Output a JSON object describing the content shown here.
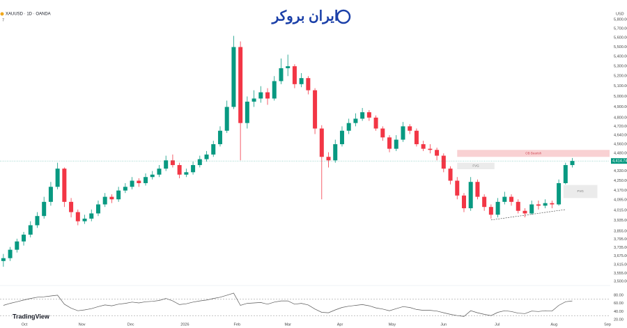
{
  "chart_data": {
    "type": "candlestick",
    "title": "XAUUSD · 1D · OANDA",
    "indicator": "7",
    "logo": "ایران بروکر",
    "brand": "TradingView",
    "currency": "USD",
    "log": true,
    "ylim": [
      3500,
      5800
    ],
    "xlim": [
      -0.5,
      89.5
    ],
    "yticks": [
      {
        "value": 5800,
        "label": "5,800.00"
      },
      {
        "value": 5700,
        "label": "5,700.00"
      },
      {
        "value": 5600,
        "label": "5,600.00"
      },
      {
        "value": 5500,
        "label": "5,500.00"
      },
      {
        "value": 5400,
        "label": "5,400.00"
      },
      {
        "value": 5300,
        "label": "5,300.00"
      },
      {
        "value": 5200,
        "label": "5,200.00"
      },
      {
        "value": 5100,
        "label": "5,100.00"
      },
      {
        "value": 5000,
        "label": "5,000.00"
      },
      {
        "value": 4900,
        "label": "4,900.00"
      },
      {
        "value": 4800,
        "label": "4,800.00"
      },
      {
        "value": 4720,
        "label": "4,720.00"
      },
      {
        "value": 4640,
        "label": "4,640.00"
      },
      {
        "value": 4560,
        "label": "4,560.00"
      },
      {
        "value": 4480,
        "label": "4,480.00"
      },
      {
        "value": 4330,
        "label": "4,330.00"
      },
      {
        "value": 4250,
        "label": "4,250.00"
      },
      {
        "value": 4170,
        "label": "4,170.00"
      },
      {
        "value": 4095,
        "label": "4,095.00"
      },
      {
        "value": 4015,
        "label": "4,015.00"
      },
      {
        "value": 3935,
        "label": "3,935.00"
      },
      {
        "value": 3855,
        "label": "3,855.00"
      },
      {
        "value": 3795,
        "label": "3,795.00"
      },
      {
        "value": 3735,
        "label": "3,735.00"
      },
      {
        "value": 3675,
        "label": "3,675.00"
      },
      {
        "value": 3615,
        "label": "3,615.00"
      },
      {
        "value": 3555,
        "label": "3,555.00"
      },
      {
        "value": 3500,
        "label": "3,500.00"
      }
    ],
    "xticks": [
      {
        "value": 3.1,
        "label": "Oct"
      },
      {
        "value": 11.6,
        "label": "Nov"
      },
      {
        "value": 18.8,
        "label": "Dec"
      },
      {
        "value": 26.8,
        "label": "2026"
      },
      {
        "value": 34.5,
        "label": "Feb"
      },
      {
        "value": 42,
        "label": "Mar"
      },
      {
        "value": 49.7,
        "label": "Apr"
      },
      {
        "value": 57.4,
        "label": "May"
      },
      {
        "value": 65,
        "label": "Jun"
      },
      {
        "value": 72.9,
        "label": "Jul"
      },
      {
        "value": 81.3,
        "label": "Aug"
      },
      {
        "value": 89.2,
        "label": "Sep"
      }
    ],
    "up_color": "#089981",
    "down_color": "#f23645",
    "ohlc": [
      [
        3640,
        3690,
        3600,
        3660
      ],
      [
        3660,
        3740,
        3640,
        3720
      ],
      [
        3720,
        3800,
        3700,
        3780
      ],
      [
        3780,
        3850,
        3750,
        3830
      ],
      [
        3830,
        3930,
        3810,
        3900
      ],
      [
        3900,
        4000,
        3880,
        3970
      ],
      [
        3970,
        4120,
        3950,
        4080
      ],
      [
        4080,
        4240,
        4050,
        4200
      ],
      [
        4200,
        4400,
        4180,
        4350
      ],
      [
        4350,
        4360,
        4040,
        4080
      ],
      [
        4080,
        4110,
        3960,
        4000
      ],
      [
        4000,
        4020,
        3900,
        3930
      ],
      [
        3930,
        3980,
        3910,
        3950
      ],
      [
        3950,
        4020,
        3930,
        3990
      ],
      [
        3990,
        4090,
        3970,
        4060
      ],
      [
        4060,
        4150,
        4040,
        4120
      ],
      [
        4120,
        4140,
        4070,
        4100
      ],
      [
        4100,
        4200,
        4080,
        4170
      ],
      [
        4170,
        4230,
        4150,
        4200
      ],
      [
        4200,
        4280,
        4180,
        4250
      ],
      [
        4250,
        4270,
        4200,
        4230
      ],
      [
        4230,
        4310,
        4210,
        4280
      ],
      [
        4280,
        4330,
        4260,
        4300
      ],
      [
        4300,
        4380,
        4280,
        4350
      ],
      [
        4350,
        4460,
        4330,
        4420
      ],
      [
        4420,
        4470,
        4360,
        4380
      ],
      [
        4380,
        4400,
        4270,
        4300
      ],
      [
        4300,
        4350,
        4280,
        4320
      ],
      [
        4320,
        4410,
        4300,
        4380
      ],
      [
        4380,
        4460,
        4360,
        4430
      ],
      [
        4430,
        4500,
        4410,
        4470
      ],
      [
        4470,
        4590,
        4450,
        4560
      ],
      [
        4560,
        4720,
        4540,
        4680
      ],
      [
        4680,
        4960,
        4660,
        4900
      ],
      [
        4900,
        5620,
        4880,
        5500
      ],
      [
        5500,
        5560,
        4420,
        4750
      ],
      [
        4750,
        5000,
        4700,
        4950
      ],
      [
        4950,
        5060,
        4900,
        4980
      ],
      [
        4980,
        5100,
        4940,
        5040
      ],
      [
        5040,
        5080,
        4920,
        4980
      ],
      [
        4980,
        5200,
        4960,
        5150
      ],
      [
        5150,
        5380,
        5120,
        5280
      ],
      [
        5280,
        5420,
        5200,
        5300
      ],
      [
        5300,
        5320,
        5080,
        5120
      ],
      [
        5120,
        5230,
        5090,
        5180
      ],
      [
        5180,
        5200,
        5020,
        5060
      ],
      [
        5060,
        5080,
        4650,
        4700
      ],
      [
        4700,
        4730,
        4100,
        4450
      ],
      [
        4450,
        4490,
        4360,
        4420
      ],
      [
        4420,
        4600,
        4400,
        4560
      ],
      [
        4560,
        4720,
        4540,
        4680
      ],
      [
        4680,
        4790,
        4650,
        4750
      ],
      [
        4750,
        4840,
        4720,
        4790
      ],
      [
        4790,
        4890,
        4770,
        4850
      ],
      [
        4850,
        4870,
        4770,
        4800
      ],
      [
        4800,
        4820,
        4680,
        4700
      ],
      [
        4700,
        4720,
        4590,
        4620
      ],
      [
        4620,
        4640,
        4490,
        4520
      ],
      [
        4520,
        4640,
        4500,
        4600
      ],
      [
        4600,
        4760,
        4580,
        4720
      ],
      [
        4720,
        4740,
        4650,
        4680
      ],
      [
        4680,
        4700,
        4540,
        4560
      ],
      [
        4560,
        4590,
        4500,
        4520
      ],
      [
        4520,
        4560,
        4480,
        4510
      ],
      [
        4510,
        4530,
        4420,
        4460
      ],
      [
        4460,
        4480,
        4320,
        4350
      ],
      [
        4350,
        4370,
        4220,
        4250
      ],
      [
        4250,
        4280,
        4100,
        4130
      ],
      [
        4130,
        4150,
        4000,
        4030
      ],
      [
        4030,
        4280,
        4010,
        4240
      ],
      [
        4240,
        4260,
        4100,
        4120
      ],
      [
        4120,
        4140,
        4010,
        4040
      ],
      [
        4040,
        4060,
        3950,
        3980
      ],
      [
        3980,
        4110,
        3960,
        4080
      ],
      [
        4080,
        4160,
        4060,
        4120
      ],
      [
        4120,
        4140,
        4050,
        4080
      ],
      [
        4080,
        4100,
        3990,
        4010
      ],
      [
        4010,
        4030,
        3960,
        3990
      ],
      [
        3990,
        4090,
        3980,
        4060
      ],
      [
        4060,
        4090,
        4020,
        4050
      ],
      [
        4050,
        4100,
        4030,
        4070
      ],
      [
        4070,
        4090,
        4030,
        4060
      ],
      [
        4060,
        4260,
        4050,
        4230
      ],
      [
        4230,
        4400,
        4220,
        4380
      ],
      [
        4380,
        4440,
        4360,
        4414.74
      ]
    ],
    "last_price": 4414.74,
    "last_price_label": "4,414.74",
    "zones": [
      {
        "label": "OB Bearish",
        "from": 67,
        "to": 89.5,
        "low": 4450,
        "high": 4510,
        "color": "#f7c5c8"
      },
      {
        "label": "FVG",
        "from": 67,
        "to": 72.5,
        "low": 4345,
        "high": 4400,
        "color": "#e6e6e6"
      },
      {
        "label": "FVG",
        "from": 82.7,
        "to": 87.7,
        "low": 4110,
        "high": 4215,
        "color": "#e6e6e6"
      }
    ],
    "trendline": {
      "x": [
        72,
        83
      ],
      "y": [
        3940,
        4020
      ]
    },
    "rsi": {
      "ylim": [
        15,
        90
      ],
      "yticks": [
        {
          "value": 80,
          "label": "80.00"
        },
        {
          "value": 60,
          "label": "60.00"
        },
        {
          "value": 40,
          "label": "40.00"
        },
        {
          "value": 20,
          "label": "20.00"
        }
      ],
      "levels": [
        70,
        30
      ],
      "color": "#555",
      "values": [
        55,
        60,
        64,
        68,
        72,
        75,
        76,
        78,
        80,
        58,
        48,
        42,
        44,
        47,
        52,
        56,
        54,
        58,
        60,
        63,
        61,
        64,
        65,
        67,
        72,
        66,
        57,
        59,
        63,
        66,
        68,
        72,
        75,
        80,
        85,
        55,
        60,
        61,
        62,
        58,
        63,
        66,
        66,
        58,
        60,
        56,
        46,
        38,
        37,
        44,
        50,
        53,
        55,
        57,
        54,
        49,
        46,
        42,
        47,
        52,
        50,
        45,
        43,
        43,
        41,
        37,
        33,
        30,
        28,
        42,
        37,
        33,
        30,
        38,
        42,
        40,
        36,
        35,
        41,
        40,
        42,
        41,
        55,
        64,
        66
      ]
    }
  }
}
